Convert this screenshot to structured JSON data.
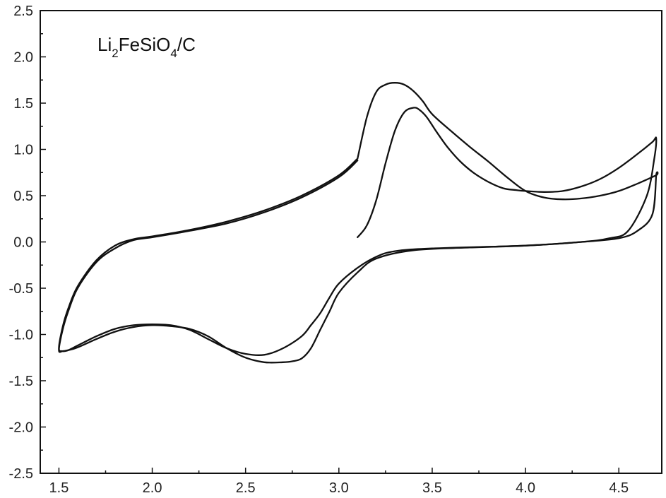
{
  "chart_data": {
    "type": "line",
    "title": "",
    "xlabel": "",
    "ylabel": "",
    "xlim": [
      1.4,
      4.73
    ],
    "ylim": [
      -2.5,
      2.5
    ],
    "x_ticks": [
      1.5,
      2.0,
      2.5,
      3.0,
      3.5,
      4.0,
      4.5
    ],
    "x_tick_labels": [
      "1.5",
      "2.0",
      "2.5",
      "3.0",
      "3.5",
      "4.0",
      "4.5"
    ],
    "y_ticks": [
      2.5,
      2.0,
      1.5,
      1.0,
      0.5,
      0.0,
      -0.5,
      -1.0,
      -1.5,
      -2.0,
      -2.5
    ],
    "y_tick_labels": [
      "2.5",
      "2.0",
      "1.5",
      "1.0",
      "0.5",
      "0.0",
      "-0.5",
      "-1.0",
      "-1.5",
      "-2.0",
      "-2.5"
    ],
    "grid": false,
    "legend": "none",
    "annotation": {
      "parts": [
        {
          "text": "Li",
          "sub": false
        },
        {
          "text": "2",
          "sub": true
        },
        {
          "text": "FeSiO",
          "sub": false
        },
        {
          "text": "4",
          "sub": true
        },
        {
          "text": "/C",
          "sub": false
        }
      ]
    },
    "series": [
      {
        "x": [
          3.1,
          3.15,
          3.2,
          3.25,
          3.3,
          3.35,
          3.4,
          3.43,
          3.47,
          3.52,
          3.58,
          3.65,
          3.72,
          3.8,
          3.88,
          3.95,
          4.0,
          4.1,
          4.2,
          4.3,
          4.4,
          4.5,
          4.6,
          4.68,
          4.7,
          4.69,
          4.65,
          4.55,
          4.45,
          4.3,
          4.0,
          3.7,
          3.4,
          3.2,
          3.1,
          3.0,
          2.95,
          2.9,
          2.85,
          2.8,
          2.75,
          2.7,
          2.6,
          2.5,
          2.4,
          2.3,
          2.2,
          2.1,
          2.0,
          1.9,
          1.8,
          1.7,
          1.6,
          1.55,
          1.52,
          1.5,
          1.52,
          1.55,
          1.6,
          1.7,
          1.8,
          1.9,
          2.0,
          2.2,
          2.4,
          2.6,
          2.8,
          3.0,
          3.1
        ],
        "y": [
          0.05,
          0.18,
          0.45,
          0.85,
          1.2,
          1.4,
          1.45,
          1.43,
          1.35,
          1.2,
          1.03,
          0.87,
          0.75,
          0.65,
          0.58,
          0.56,
          0.55,
          0.54,
          0.55,
          0.6,
          0.68,
          0.8,
          0.95,
          1.08,
          1.12,
          0.9,
          0.5,
          0.12,
          0.04,
          0.0,
          -0.04,
          -0.06,
          -0.09,
          -0.18,
          -0.33,
          -0.55,
          -0.75,
          -0.95,
          -1.15,
          -1.26,
          -1.29,
          -1.3,
          -1.3,
          -1.25,
          -1.15,
          -1.02,
          -0.94,
          -0.91,
          -0.9,
          -0.92,
          -0.97,
          -1.05,
          -1.14,
          -1.17,
          -1.18,
          -1.17,
          -0.95,
          -0.75,
          -0.5,
          -0.22,
          -0.07,
          0.02,
          0.05,
          0.12,
          0.2,
          0.32,
          0.48,
          0.7,
          0.88
        ]
      },
      {
        "x": [
          3.1,
          3.0,
          2.8,
          2.6,
          2.4,
          2.2,
          2.0,
          1.9,
          1.8,
          1.7,
          1.6,
          1.55,
          1.52,
          1.5,
          1.52,
          1.55,
          1.6,
          1.7,
          1.8,
          1.9,
          2.0,
          2.1,
          2.2,
          2.3,
          2.4,
          2.5,
          2.6,
          2.7,
          2.8,
          2.85,
          2.9,
          2.95,
          3.0,
          3.1,
          3.2,
          3.3,
          3.5,
          4.0,
          4.3,
          4.5,
          4.6,
          4.68,
          4.7,
          4.7,
          4.6,
          4.5,
          4.4,
          4.3,
          4.2,
          4.1,
          4.0,
          3.9,
          3.8,
          3.7,
          3.6,
          3.5,
          3.45,
          3.4,
          3.35,
          3.3,
          3.25,
          3.2,
          3.15,
          3.1
        ],
        "y": [
          0.9,
          0.72,
          0.5,
          0.34,
          0.22,
          0.13,
          0.06,
          0.03,
          -0.04,
          -0.2,
          -0.48,
          -0.72,
          -0.92,
          -1.15,
          -1.18,
          -1.17,
          -1.12,
          -1.02,
          -0.94,
          -0.9,
          -0.89,
          -0.9,
          -0.95,
          -1.05,
          -1.15,
          -1.21,
          -1.22,
          -1.15,
          -1.02,
          -0.9,
          -0.77,
          -0.6,
          -0.45,
          -0.28,
          -0.16,
          -0.1,
          -0.07,
          -0.04,
          0.0,
          0.04,
          0.12,
          0.3,
          0.72,
          0.72,
          0.63,
          0.55,
          0.5,
          0.47,
          0.46,
          0.48,
          0.55,
          0.7,
          0.87,
          1.03,
          1.2,
          1.38,
          1.52,
          1.63,
          1.7,
          1.72,
          1.7,
          1.62,
          1.35,
          0.9
        ]
      }
    ]
  }
}
